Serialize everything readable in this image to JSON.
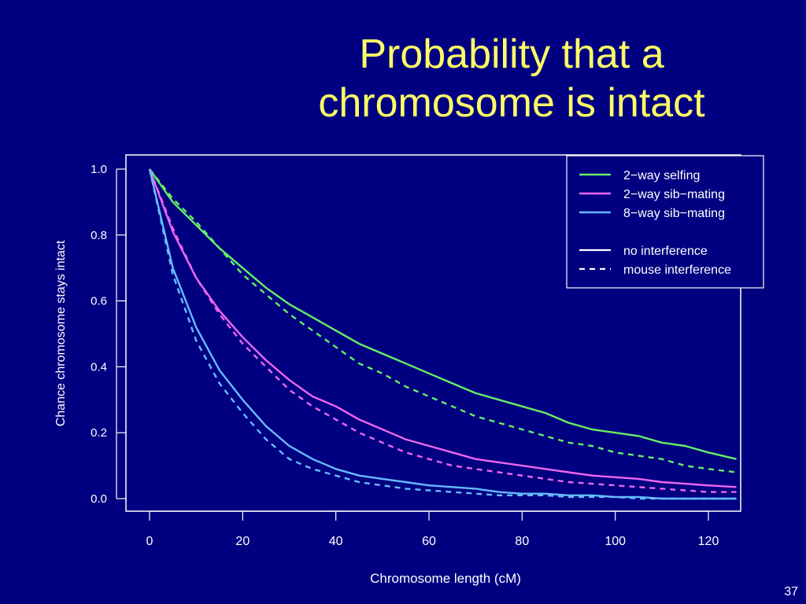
{
  "slide": {
    "title_line1": "Probability that a",
    "title_line2": "chromosome is intact",
    "page_number": "37"
  },
  "colors": {
    "background": "#000080",
    "title": "#FFFF66",
    "axis": "#FFFFFF",
    "selfing": "#66EE66",
    "sib2": "#EE66EE",
    "sib8": "#66BBFF"
  },
  "chart_data": {
    "type": "line",
    "title": "",
    "xlabel": "Chromosome length (cM)",
    "ylabel": "Chance chromosome stays intact",
    "xlim": [
      0,
      126
    ],
    "ylim": [
      0,
      1
    ],
    "xticks": [
      0,
      20,
      40,
      60,
      80,
      100,
      120
    ],
    "yticks": [
      "0.0",
      "0.2",
      "0.4",
      "0.6",
      "0.8",
      "1.0"
    ],
    "grid": false,
    "legend_position": "top-right",
    "legend": {
      "colors": [
        "2−way selfing",
        "2−way sib−mating",
        "8−way sib−mating"
      ],
      "styles": [
        "no interference",
        "mouse interference"
      ]
    },
    "x": [
      0,
      5,
      10,
      15,
      20,
      25,
      30,
      35,
      40,
      45,
      50,
      55,
      60,
      65,
      70,
      75,
      80,
      85,
      90,
      95,
      100,
      105,
      110,
      115,
      120,
      126
    ],
    "series": [
      {
        "name": "2−way selfing / no interference",
        "cross": "2−way selfing",
        "interference": "no interference",
        "values": [
          1.0,
          0.9,
          0.83,
          0.76,
          0.7,
          0.64,
          0.59,
          0.55,
          0.51,
          0.47,
          0.44,
          0.41,
          0.38,
          0.35,
          0.32,
          0.3,
          0.28,
          0.26,
          0.23,
          0.21,
          0.2,
          0.19,
          0.17,
          0.16,
          0.14,
          0.12
        ]
      },
      {
        "name": "2−way selfing / mouse interference",
        "cross": "2−way selfing",
        "interference": "mouse interference",
        "values": [
          1.0,
          0.91,
          0.84,
          0.76,
          0.68,
          0.62,
          0.56,
          0.51,
          0.46,
          0.41,
          0.38,
          0.34,
          0.31,
          0.28,
          0.25,
          0.23,
          0.21,
          0.19,
          0.17,
          0.16,
          0.14,
          0.13,
          0.12,
          0.1,
          0.09,
          0.08
        ]
      },
      {
        "name": "2−way sib−mating / no interference",
        "cross": "2−way sib−mating",
        "interference": "no interference",
        "values": [
          1.0,
          0.81,
          0.67,
          0.57,
          0.49,
          0.42,
          0.36,
          0.31,
          0.28,
          0.24,
          0.21,
          0.18,
          0.16,
          0.14,
          0.12,
          0.11,
          0.1,
          0.09,
          0.08,
          0.07,
          0.065,
          0.06,
          0.05,
          0.045,
          0.04,
          0.035
        ]
      },
      {
        "name": "2−way sib−mating / mouse interference",
        "cross": "2−way sib−mating",
        "interference": "mouse interference",
        "values": [
          1.0,
          0.82,
          0.67,
          0.56,
          0.47,
          0.4,
          0.33,
          0.28,
          0.24,
          0.2,
          0.17,
          0.14,
          0.12,
          0.1,
          0.09,
          0.08,
          0.07,
          0.06,
          0.05,
          0.045,
          0.04,
          0.035,
          0.03,
          0.025,
          0.02,
          0.02
        ]
      },
      {
        "name": "8−way sib−mating / no interference",
        "cross": "8−way sib−mating",
        "interference": "no interference",
        "values": [
          1.0,
          0.7,
          0.52,
          0.39,
          0.3,
          0.22,
          0.16,
          0.12,
          0.09,
          0.07,
          0.06,
          0.05,
          0.04,
          0.035,
          0.03,
          0.02,
          0.015,
          0.015,
          0.01,
          0.01,
          0.005,
          0.005,
          0.0,
          0.0,
          0.0,
          0.0
        ]
      },
      {
        "name": "8−way sib−mating / mouse interference",
        "cross": "8−way sib−mating",
        "interference": "mouse interference",
        "values": [
          1.0,
          0.68,
          0.48,
          0.35,
          0.26,
          0.18,
          0.12,
          0.09,
          0.07,
          0.05,
          0.04,
          0.03,
          0.025,
          0.02,
          0.015,
          0.01,
          0.01,
          0.01,
          0.005,
          0.005,
          0.005,
          0.0,
          0.0,
          0.0,
          0.0,
          0.0
        ]
      }
    ]
  }
}
